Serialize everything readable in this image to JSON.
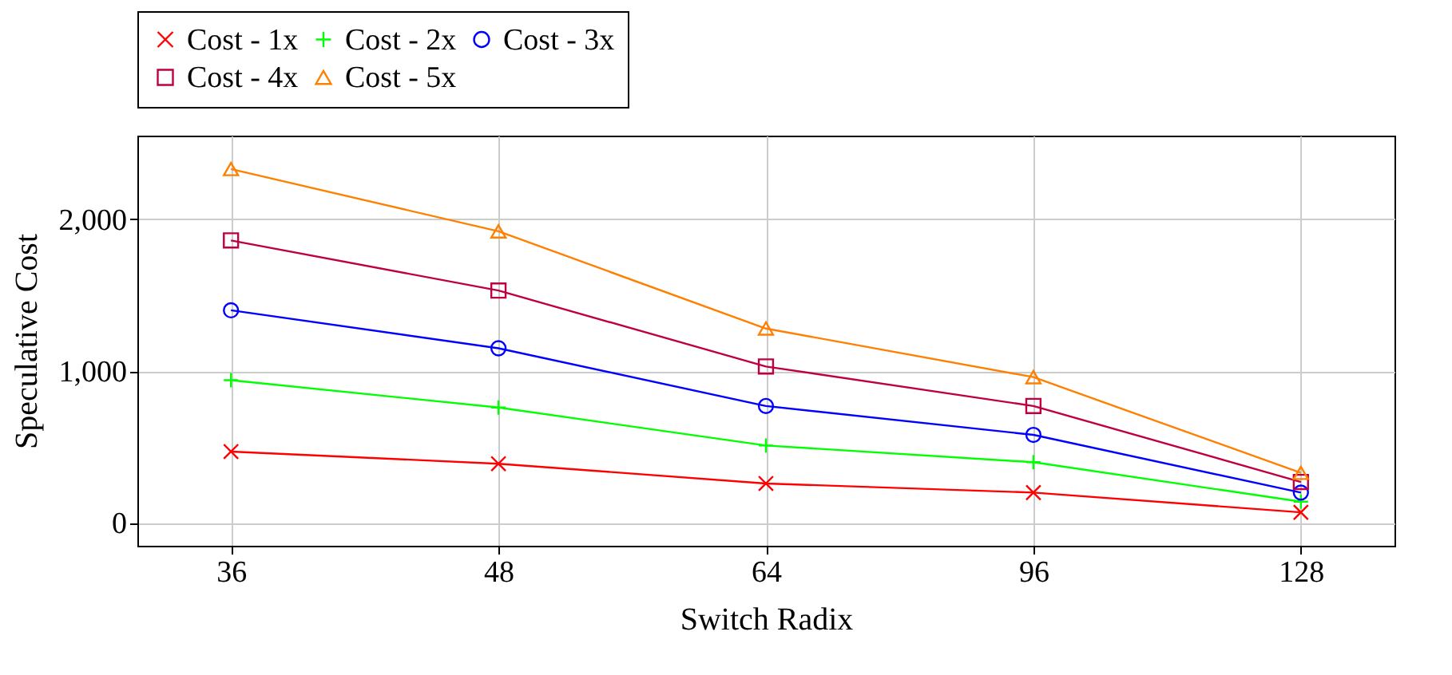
{
  "chart_data": {
    "type": "line",
    "xlabel": "Switch Radix",
    "ylabel": "Speculative Cost",
    "categories": [
      "36",
      "48",
      "64",
      "96",
      "128"
    ],
    "ylim": [
      -150,
      2550
    ],
    "yticks": [
      0,
      {
        "value": 1000,
        "label": "1,000"
      },
      {
        "value": 2000,
        "label": "2,000"
      }
    ],
    "grid": true,
    "legend": "top",
    "series": [
      {
        "name": "Cost - 1x",
        "color": "#ff0000",
        "marker": "x",
        "values": [
          470,
          390,
          260,
          200,
          70
        ]
      },
      {
        "name": "Cost - 2x",
        "color": "#00ff00",
        "marker": "plus",
        "values": [
          940,
          760,
          510,
          400,
          140
        ]
      },
      {
        "name": "Cost - 3x",
        "color": "#0000ff",
        "marker": "circle",
        "values": [
          1400,
          1150,
          770,
          580,
          200
        ]
      },
      {
        "name": "Cost - 4x",
        "color": "#bf0040",
        "marker": "square",
        "values": [
          1860,
          1530,
          1030,
          770,
          270
        ]
      },
      {
        "name": "Cost - 5x",
        "color": "#ff8000",
        "marker": "triangle",
        "values": [
          2330,
          1920,
          1280,
          960,
          330
        ]
      }
    ]
  }
}
